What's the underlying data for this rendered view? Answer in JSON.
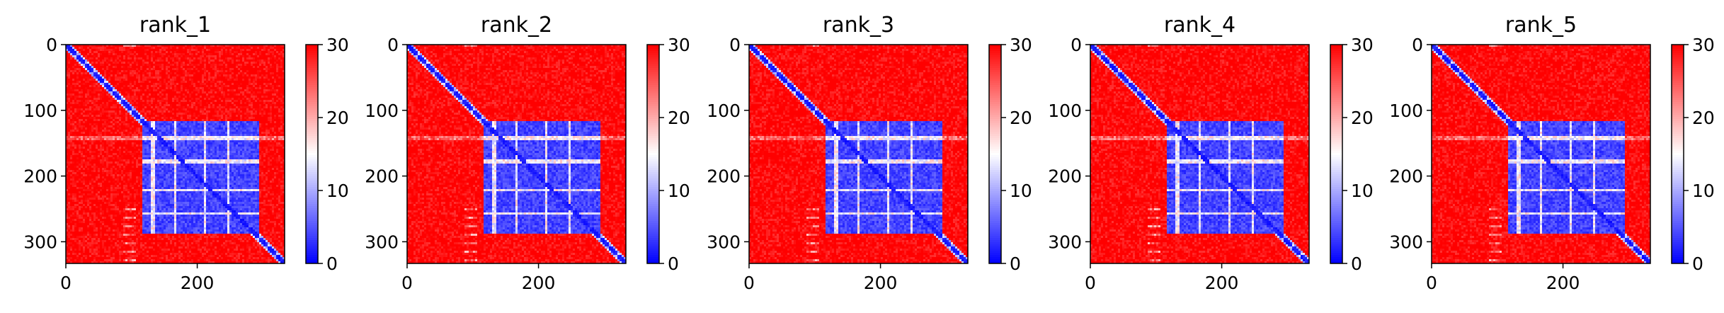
{
  "chart_data": [
    {
      "type": "heatmap",
      "title": "rank_1",
      "xlabel": "",
      "ylabel": "",
      "x_ticks": [
        0,
        200
      ],
      "y_ticks": [
        0,
        100,
        200,
        300
      ],
      "xlim": [
        0,
        333
      ],
      "ylim": [
        333,
        0
      ],
      "colorbar": {
        "colormap": "bwr",
        "range": [
          0,
          30
        ],
        "ticks": [
          0,
          10,
          20,
          30
        ]
      },
      "colors": {
        "low": "#0000ff",
        "mid": "#ffffff",
        "high": "#ff0000"
      },
      "matrix_size": 333,
      "diagonal_band": true,
      "low_region": {
        "rows": [
          115,
          285
        ],
        "cols": [
          115,
          290
        ]
      },
      "light_stripes": [
        140,
        175,
        220,
        255
      ]
    },
    {
      "type": "heatmap",
      "title": "rank_2",
      "xlabel": "",
      "ylabel": "",
      "x_ticks": [
        0,
        200
      ],
      "y_ticks": [
        0,
        100,
        200,
        300
      ],
      "xlim": [
        0,
        333
      ],
      "ylim": [
        333,
        0
      ],
      "colorbar": {
        "colormap": "bwr",
        "range": [
          0,
          30
        ],
        "ticks": [
          0,
          10,
          20,
          30
        ]
      },
      "colors": {
        "low": "#0000ff",
        "mid": "#ffffff",
        "high": "#ff0000"
      },
      "matrix_size": 333,
      "diagonal_band": true,
      "low_region": {
        "rows": [
          115,
          285
        ],
        "cols": [
          115,
          290
        ]
      },
      "light_stripes": [
        140,
        175,
        220,
        255
      ]
    },
    {
      "type": "heatmap",
      "title": "rank_3",
      "xlabel": "",
      "ylabel": "",
      "x_ticks": [
        0,
        200
      ],
      "y_ticks": [
        0,
        100,
        200,
        300
      ],
      "xlim": [
        0,
        333
      ],
      "ylim": [
        333,
        0
      ],
      "colorbar": {
        "colormap": "bwr",
        "range": [
          0,
          30
        ],
        "ticks": [
          0,
          10,
          20,
          30
        ]
      },
      "colors": {
        "low": "#0000ff",
        "mid": "#ffffff",
        "high": "#ff0000"
      },
      "matrix_size": 333,
      "diagonal_band": true,
      "low_region": {
        "rows": [
          115,
          285
        ],
        "cols": [
          115,
          290
        ]
      },
      "light_stripes": [
        140,
        175,
        220,
        255
      ]
    },
    {
      "type": "heatmap",
      "title": "rank_4",
      "xlabel": "",
      "ylabel": "",
      "x_ticks": [
        0,
        200
      ],
      "y_ticks": [
        0,
        100,
        200,
        300
      ],
      "xlim": [
        0,
        333
      ],
      "ylim": [
        333,
        0
      ],
      "colorbar": {
        "colormap": "bwr",
        "range": [
          0,
          30
        ],
        "ticks": [
          0,
          10,
          20,
          30
        ]
      },
      "colors": {
        "low": "#0000ff",
        "mid": "#ffffff",
        "high": "#ff0000"
      },
      "matrix_size": 333,
      "diagonal_band": true,
      "low_region": {
        "rows": [
          115,
          285
        ],
        "cols": [
          115,
          290
        ]
      },
      "light_stripes": [
        140,
        175,
        220,
        255
      ]
    },
    {
      "type": "heatmap",
      "title": "rank_5",
      "xlabel": "",
      "ylabel": "",
      "x_ticks": [
        0,
        200
      ],
      "y_ticks": [
        0,
        100,
        200,
        300
      ],
      "xlim": [
        0,
        333
      ],
      "ylim": [
        333,
        0
      ],
      "colorbar": {
        "colormap": "bwr",
        "range": [
          0,
          30
        ],
        "ticks": [
          0,
          10,
          20,
          30
        ]
      },
      "colors": {
        "low": "#0000ff",
        "mid": "#ffffff",
        "high": "#ff0000"
      },
      "matrix_size": 333,
      "diagonal_band": true,
      "low_region": {
        "rows": [
          115,
          285
        ],
        "cols": [
          115,
          290
        ]
      },
      "light_stripes": [
        140,
        175,
        220,
        255
      ]
    }
  ]
}
